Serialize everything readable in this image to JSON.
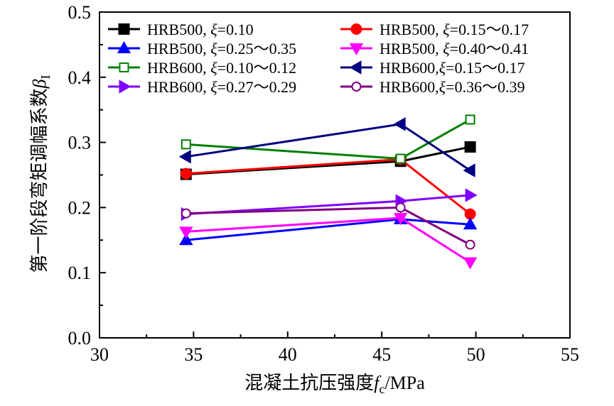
{
  "chart_data": {
    "type": "line",
    "xlabel": "混凝土抗压强度",
    "xlabel_var": "f",
    "xlabel_sub": "c",
    "xlabel_unit": "/MPa",
    "ylabel": "第一阶段弯矩调幅系数",
    "ylabel_var": "β",
    "ylabel_sub": "I",
    "xlim": [
      30,
      55
    ],
    "ylim": [
      0.0,
      0.5
    ],
    "xticks": [
      "30",
      "35",
      "40",
      "45",
      "50",
      "55"
    ],
    "yticks": [
      "0.0",
      "0.1",
      "0.2",
      "0.3",
      "0.4",
      "0.5"
    ],
    "x": [
      34.6,
      46.0,
      49.7
    ],
    "series": [
      {
        "name": "HRB500, ξ=0.10",
        "grade": "HRB500, ",
        "xi": "ξ",
        "range": "=0.10",
        "color": "#000000",
        "marker": "square-filled",
        "values": [
          0.251,
          0.271,
          0.293
        ]
      },
      {
        "name": "HRB500, ξ=0.15～0.17",
        "grade": "HRB500, ",
        "xi": "ξ",
        "range": "=0.15～0.17",
        "color": "#ff0000",
        "marker": "circle-filled",
        "values": [
          0.252,
          0.274,
          0.19
        ]
      },
      {
        "name": "HRB500, ξ=0.25～0.35",
        "grade": "HRB500, ",
        "xi": "ξ",
        "range": "=0.25～0.35",
        "color": "#0000ff",
        "marker": "triangle-up-filled",
        "values": [
          0.15,
          0.182,
          0.174
        ]
      },
      {
        "name": "HRB500, ξ=0.40～0.41",
        "grade": "HRB500, ",
        "xi": "ξ",
        "range": "=0.40～0.41",
        "color": "#ff00ff",
        "marker": "triangle-down-filled",
        "values": [
          0.163,
          0.184,
          0.116
        ]
      },
      {
        "name": "HRB600, ξ=0.10～0.12",
        "grade": "HRB600, ",
        "xi": "ξ",
        "range": "=0.10～0.12",
        "color": "#008000",
        "marker": "square-open",
        "values": [
          0.297,
          0.275,
          0.335
        ]
      },
      {
        "name": "HRB600, ξ=0.15～0.17",
        "grade": "HRB600,",
        "xi": "ξ",
        "range": "=0.15～0.17",
        "color": "#000080",
        "marker": "triangle-left-filled",
        "values": [
          0.278,
          0.328,
          0.257
        ]
      },
      {
        "name": "HRB600, ξ=0.27～0.29",
        "grade": "HRB600, ",
        "xi": "ξ",
        "range": "=0.27～0.29",
        "color": "#8000ff",
        "marker": "triangle-right-filled",
        "values": [
          0.19,
          0.21,
          0.219
        ]
      },
      {
        "name": "HRB600, ξ=0.36～0.39",
        "grade": "HRB600,",
        "xi": "ξ",
        "range": "=0.36～0.39",
        "color": "#800080",
        "marker": "circle-open",
        "values": [
          0.191,
          0.2,
          0.143
        ]
      }
    ]
  }
}
